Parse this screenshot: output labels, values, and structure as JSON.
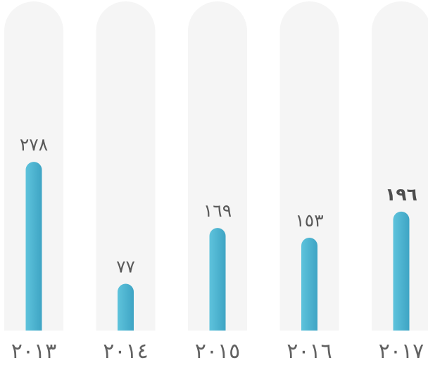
{
  "chart_data": {
    "type": "bar",
    "categories": [
      "٢٠١٣",
      "٢٠١٤",
      "٢٠١٥",
      "٢٠١٦",
      "٢٠١٧"
    ],
    "values": [
      278,
      77,
      169,
      153,
      196
    ],
    "value_labels": [
      "٢٧٨",
      "٧٧",
      "١٦٩",
      "١٥٣",
      "١٩٦"
    ],
    "highlighted_index": 4,
    "ylim": [
      0,
      400
    ],
    "grid": false,
    "legend": "none",
    "title": "",
    "xlabel": "",
    "ylabel": "",
    "colors": {
      "bar_light": "#5ec3dc",
      "bar_dark": "#3ea4c4",
      "track": "#f5f5f5"
    }
  }
}
